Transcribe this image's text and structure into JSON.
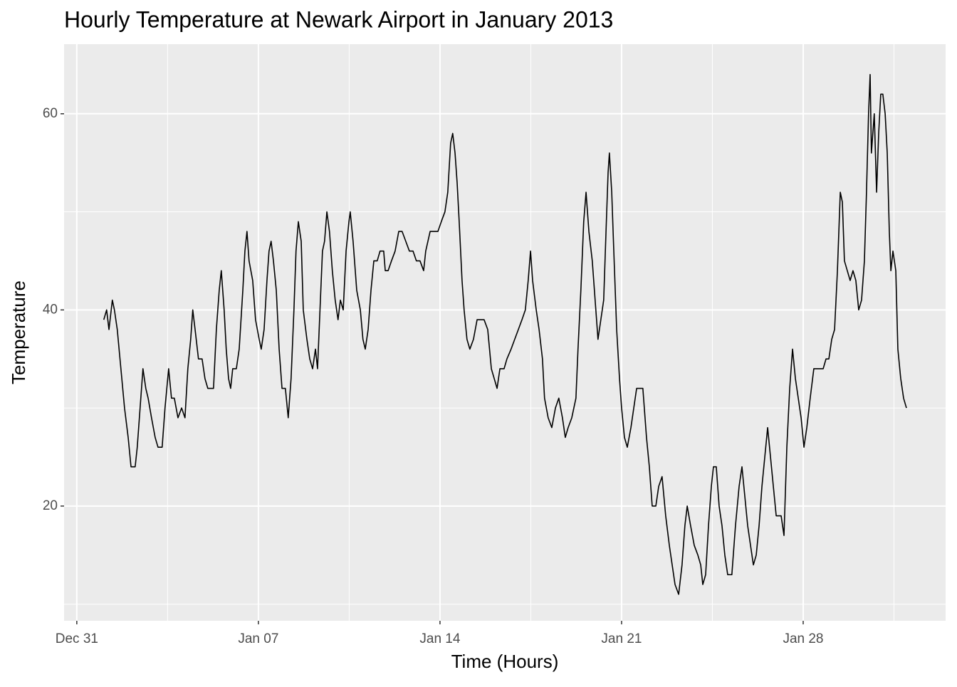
{
  "chart_data": {
    "type": "line",
    "title": "Hourly Temperature at Newark Airport in January 2013",
    "x_label": "Time (Hours)",
    "y_label": "Temperature",
    "xlim": [
      -0.49,
      33.49
    ],
    "ylim": [
      8.3,
      67.1
    ],
    "xticks": [
      {
        "value": 0,
        "label": "Dec 31"
      },
      {
        "value": 7,
        "label": "Jan 07"
      },
      {
        "value": 14,
        "label": "Jan 14"
      },
      {
        "value": 21,
        "label": "Jan 21"
      },
      {
        "value": 28,
        "label": "Jan 28"
      }
    ],
    "yticks": [
      20,
      40,
      60
    ],
    "xminor_ticks": [
      3.5,
      10.5,
      17.5,
      24.5,
      31.5
    ],
    "yminor_ticks": [
      10,
      30,
      50
    ],
    "grid": true,
    "series": [
      {
        "color": "#000000",
        "x": [
          1.04,
          1.15,
          1.24,
          1.37,
          1.45,
          1.56,
          1.7,
          1.84,
          1.98,
          2.09,
          2.25,
          2.33,
          2.44,
          2.55,
          2.66,
          2.75,
          2.88,
          3.02,
          3.13,
          3.29,
          3.4,
          3.54,
          3.65,
          3.76,
          3.9,
          4.04,
          4.17,
          4.28,
          4.39,
          4.47,
          4.56,
          4.69,
          4.83,
          4.94,
          5.05,
          5.19,
          5.27,
          5.38,
          5.49,
          5.57,
          5.68,
          5.76,
          5.85,
          5.93,
          6.01,
          6.15,
          6.26,
          6.4,
          6.48,
          6.56,
          6.64,
          6.78,
          6.89,
          7.03,
          7.11,
          7.22,
          7.33,
          7.41,
          7.49,
          7.58,
          7.69,
          7.8,
          7.91,
          8.04,
          8.15,
          8.26,
          8.37,
          8.45,
          8.54,
          8.65,
          8.73,
          8.87,
          8.98,
          9.09,
          9.2,
          9.28,
          9.39,
          9.47,
          9.55,
          9.64,
          9.74,
          9.85,
          9.96,
          10.07,
          10.16,
          10.27,
          10.38,
          10.49,
          10.54,
          10.65,
          10.79,
          10.93,
          11.03,
          11.12,
          11.23,
          11.34,
          11.45,
          11.58,
          11.69,
          11.83,
          11.89,
          12.0,
          12.13,
          12.27,
          12.41,
          12.54,
          12.68,
          12.82,
          12.96,
          13.09,
          13.23,
          13.37,
          13.45,
          13.62,
          13.78,
          13.92,
          14.05,
          14.19,
          14.3,
          14.41,
          14.49,
          14.58,
          14.66,
          14.74,
          14.85,
          14.93,
          15.04,
          15.15,
          15.29,
          15.43,
          15.56,
          15.7,
          15.84,
          15.98,
          16.09,
          16.2,
          16.31,
          16.47,
          16.58,
          16.74,
          16.88,
          17.02,
          17.16,
          17.29,
          17.4,
          17.49,
          17.57,
          17.71,
          17.82,
          17.95,
          18.03,
          18.17,
          18.31,
          18.45,
          18.58,
          18.72,
          18.83,
          18.94,
          19.08,
          19.24,
          19.32,
          19.43,
          19.54,
          19.63,
          19.74,
          19.87,
          19.98,
          20.09,
          20.2,
          20.31,
          20.4,
          20.48,
          20.53,
          20.62,
          20.7,
          20.81,
          20.92,
          21.0,
          21.11,
          21.22,
          21.36,
          21.47,
          21.58,
          21.74,
          21.82,
          21.96,
          22.07,
          22.18,
          22.32,
          22.43,
          22.56,
          22.7,
          22.84,
          22.95,
          23.06,
          23.2,
          23.33,
          23.44,
          23.53,
          23.66,
          23.8,
          23.94,
          24.05,
          24.13,
          24.24,
          24.35,
          24.46,
          24.54,
          24.65,
          24.76,
          24.87,
          24.98,
          25.09,
          25.25,
          25.39,
          25.53,
          25.64,
          25.75,
          25.86,
          25.97,
          26.08,
          26.19,
          26.3,
          26.41,
          26.52,
          26.63,
          26.74,
          26.85,
          26.96,
          27.15,
          27.26,
          27.37,
          27.48,
          27.59,
          27.7,
          27.81,
          27.92,
          28.03,
          28.14,
          28.27,
          28.41,
          28.6,
          28.77,
          28.88,
          28.99,
          29.1,
          29.21,
          29.32,
          29.43,
          29.51,
          29.59,
          29.7,
          29.81,
          29.92,
          30.03,
          30.14,
          30.25,
          30.36,
          30.44,
          30.52,
          30.58,
          30.63,
          30.74,
          30.83,
          30.91,
          30.99,
          31.07,
          31.16,
          31.24,
          31.32,
          31.38,
          31.46,
          31.57,
          31.65,
          31.76,
          31.87,
          31.98
        ],
        "values": [
          39,
          40,
          38,
          41,
          40,
          38,
          34,
          30,
          27,
          24,
          24,
          26,
          30,
          34,
          32,
          31,
          29,
          27,
          26,
          26,
          30,
          34,
          31,
          31,
          29,
          30,
          29,
          34,
          37,
          40,
          38,
          35,
          35,
          33,
          32,
          32,
          32,
          38,
          42,
          44,
          40,
          36,
          33,
          32,
          34,
          34,
          36,
          42,
          46,
          48,
          45,
          43,
          39,
          37,
          36,
          38,
          43,
          46,
          47,
          45,
          42,
          36,
          32,
          32,
          29,
          33,
          40,
          46,
          49,
          47,
          40,
          37,
          35,
          34,
          36,
          34,
          41,
          46,
          47,
          50,
          48,
          44,
          41,
          39,
          41,
          40,
          46,
          49,
          50,
          47,
          42,
          40,
          37,
          36,
          38,
          42,
          45,
          45,
          46,
          46,
          44,
          44,
          45,
          46,
          48,
          48,
          47,
          46,
          46,
          45,
          45,
          44,
          46,
          48,
          48,
          48,
          49,
          50,
          52,
          57,
          58,
          56,
          53,
          49,
          43,
          40,
          37,
          36,
          37,
          39,
          39,
          39,
          38,
          34,
          33,
          32,
          34,
          34,
          35,
          36,
          37,
          38,
          39,
          40,
          43,
          46,
          43,
          40,
          38,
          35,
          31,
          29,
          28,
          30,
          31,
          29,
          27,
          28,
          29,
          31,
          36,
          42,
          49,
          52,
          48,
          45,
          41,
          37,
          39,
          41,
          48,
          54,
          56,
          52,
          46,
          38,
          33,
          30,
          27,
          26,
          28,
          30,
          32,
          32,
          32,
          27,
          24,
          20,
          20,
          22,
          23,
          19,
          16,
          14,
          12,
          11,
          14,
          18,
          20,
          18,
          16,
          15,
          14,
          12,
          13,
          18,
          22,
          24,
          24,
          20,
          18,
          15,
          13,
          13,
          18,
          22,
          24,
          21,
          18,
          16,
          14,
          15,
          18,
          22,
          25,
          28,
          25,
          22,
          19,
          19,
          17,
          26,
          32,
          36,
          33,
          31,
          29,
          26,
          28,
          31,
          34,
          34,
          34,
          35,
          35,
          37,
          38,
          44,
          52,
          51,
          45,
          44,
          43,
          44,
          43,
          40,
          41,
          45,
          52,
          60,
          64,
          56,
          60,
          52,
          58,
          62,
          62,
          60,
          56,
          48,
          44,
          46,
          44,
          36,
          33,
          31,
          30
        ]
      }
    ]
  }
}
